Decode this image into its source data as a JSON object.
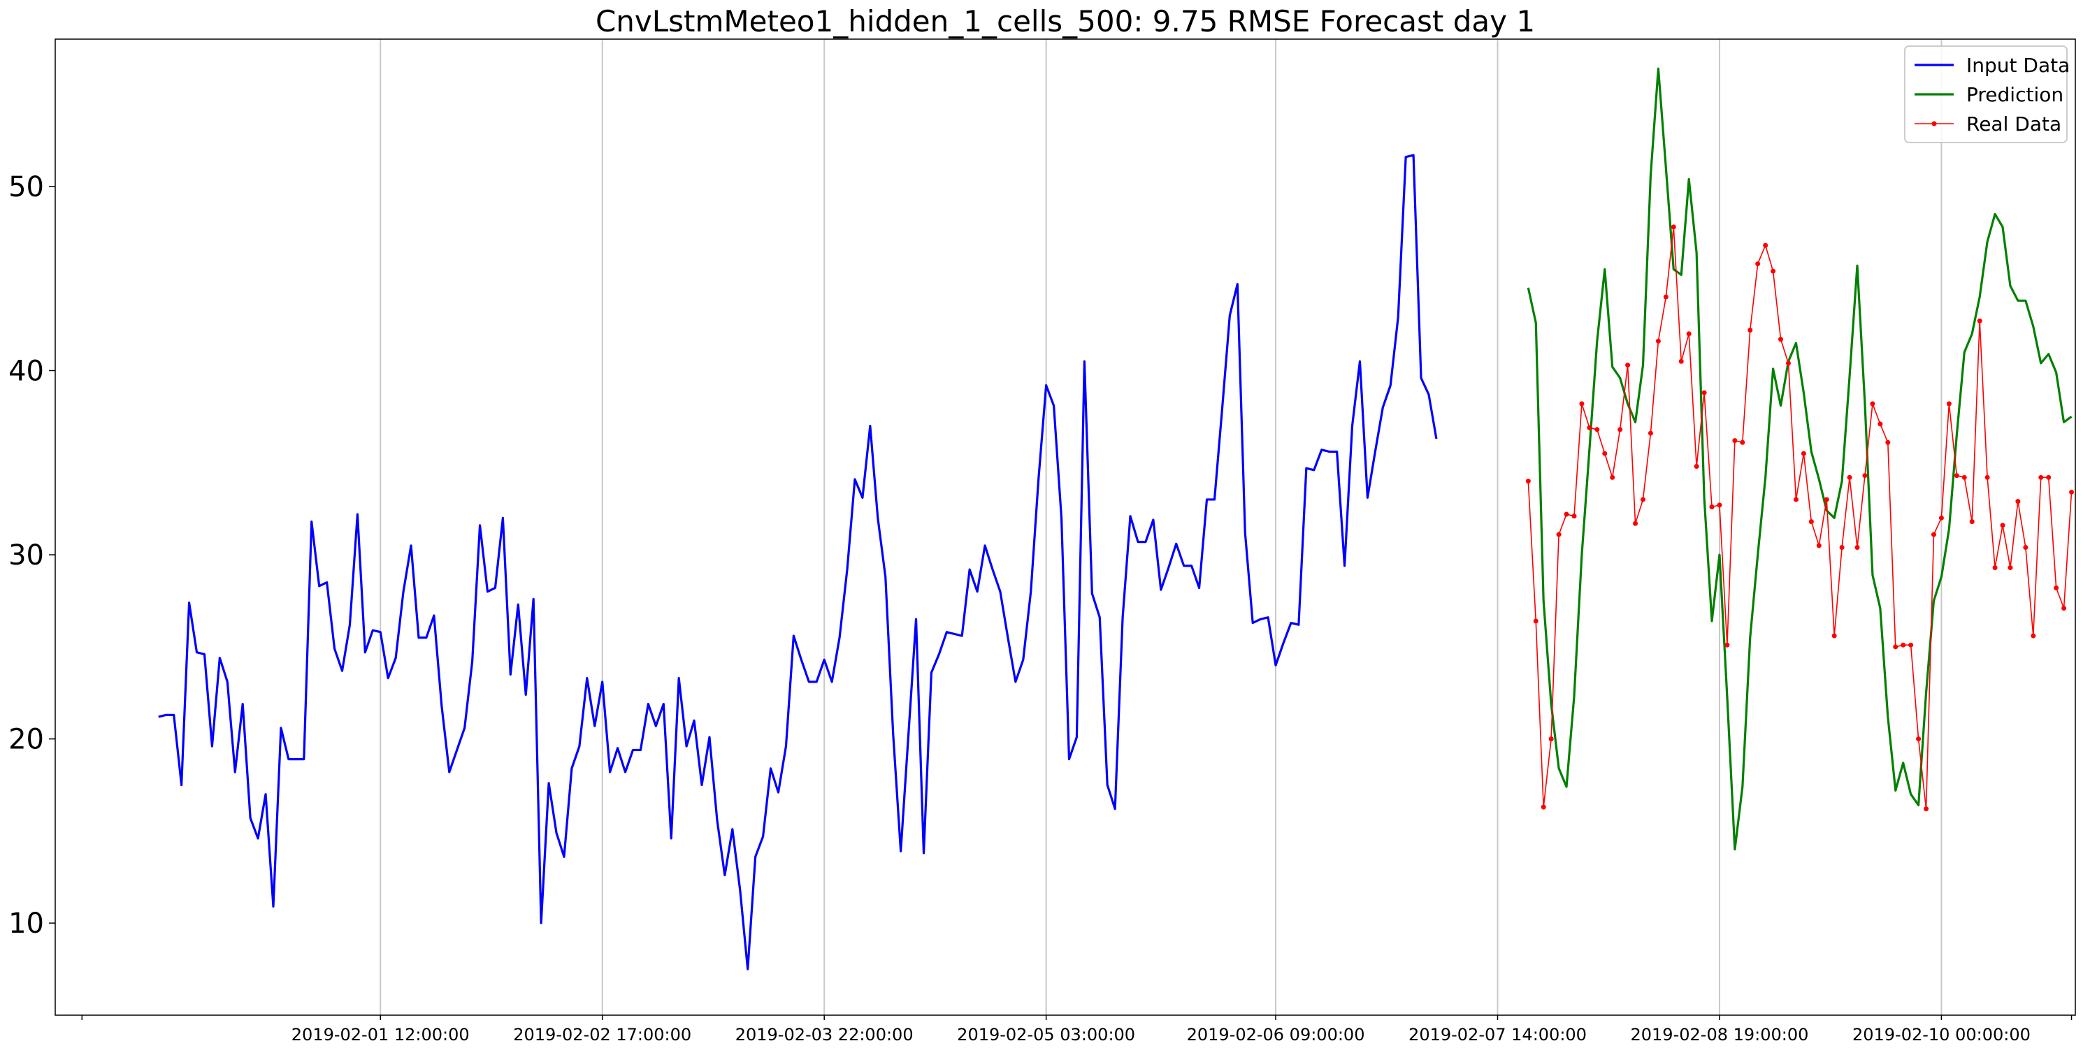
{
  "chart_data": {
    "type": "line",
    "title": "CnvLstmMeteo1_hidden_1_cells_500: 9.75 RMSE Forecast day 1",
    "xlabel": "",
    "ylabel": "",
    "x_unit": "hours since 2019-01-31 19:00",
    "xlim": [
      -13.5,
      250.5
    ],
    "ylim": [
      5,
      58
    ],
    "y_ticks": [
      10,
      20,
      30,
      40,
      50
    ],
    "x_ticks": [
      {
        "hour": 29,
        "label": "2019-02-01 12:00:00"
      },
      {
        "hour": 58,
        "label": "2019-02-02 17:00:00"
      },
      {
        "hour": 87,
        "label": "2019-02-03 22:00:00"
      },
      {
        "hour": 116,
        "label": "2019-02-05 03:00:00"
      },
      {
        "hour": 146,
        "label": "2019-02-06 09:00:00"
      },
      {
        "hour": 175,
        "label": "2019-02-07 14:00:00"
      },
      {
        "hour": 204,
        "label": "2019-02-08 19:00:00"
      },
      {
        "hour": 233,
        "label": "2019-02-10 00:00:00"
      }
    ],
    "grid": "vertical",
    "legend_position": "top-right",
    "series": [
      {
        "name": "Input Data",
        "color": "#0000ff",
        "start": 0,
        "values": [
          21.2,
          21.3,
          21.3,
          17.5,
          27.4,
          24.7,
          24.6,
          19.6,
          24.4,
          23.1,
          18.2,
          21.9,
          15.7,
          14.6,
          17.0,
          10.9,
          20.6,
          18.9,
          18.9,
          18.9,
          31.8,
          28.3,
          28.5,
          24.9,
          23.7,
          26.2,
          32.2,
          24.7,
          25.9,
          25.8,
          23.3,
          24.4,
          28.0,
          30.5,
          25.5,
          25.5,
          26.7,
          21.8,
          18.2,
          19.4,
          20.6,
          24.2,
          31.6,
          28.0,
          28.2,
          32.0,
          23.5,
          27.3,
          22.4,
          27.6,
          10.0,
          17.6,
          14.9,
          13.6,
          18.4,
          19.6,
          23.3,
          20.7,
          23.1,
          18.2,
          19.5,
          18.2,
          19.4,
          19.4,
          21.9,
          20.7,
          21.9,
          14.6,
          23.3,
          19.6,
          21.0,
          17.5,
          20.1,
          15.6,
          12.6,
          15.1,
          11.8,
          7.5,
          13.6,
          14.7,
          18.4,
          17.1,
          19.6,
          25.6,
          24.3,
          23.1,
          23.1,
          24.3,
          23.1,
          25.5,
          29.2,
          34.1,
          33.1,
          37.0,
          32.0,
          28.8,
          20.3,
          13.9,
          20.2,
          26.5,
          13.8,
          23.6,
          24.6,
          25.8,
          25.7,
          25.6,
          29.2,
          28.0,
          30.5,
          29.2,
          28.0,
          25.5,
          23.1,
          24.3,
          28.0,
          34.1,
          39.2,
          38.1,
          32.0,
          18.9,
          20.1,
          40.5,
          27.9,
          26.6,
          17.5,
          16.2,
          26.6,
          32.1,
          30.7,
          30.7,
          31.9,
          28.1,
          29.3,
          30.6,
          29.4,
          29.4,
          28.2,
          33.0,
          33.0,
          37.9,
          43.0,
          44.7,
          31.2,
          26.3,
          26.5,
          26.6,
          24.0,
          25.2,
          26.3,
          26.2,
          34.7,
          34.6,
          35.7,
          35.6,
          35.6,
          29.4,
          37.0,
          40.5,
          33.1,
          35.6,
          38.0,
          39.2,
          42.9,
          51.6,
          51.7,
          39.6,
          38.7,
          36.3
        ]
      },
      {
        "name": "Prediction",
        "color": "#008000",
        "start": 179,
        "values": [
          44.5,
          42.6,
          27.5,
          21.9,
          18.4,
          17.4,
          22.3,
          30.0,
          35.7,
          41.6,
          45.5,
          40.2,
          39.6,
          38.2,
          37.2,
          40.3,
          50.6,
          56.4,
          51.0,
          45.5,
          45.2,
          50.4,
          46.4,
          33.1,
          26.4,
          30.0,
          22.3,
          14.0,
          17.4,
          25.5,
          30.0,
          34.2,
          40.1,
          38.1,
          40.5,
          41.5,
          38.8,
          35.6,
          34.1,
          32.4,
          32.0,
          34.0,
          39.7,
          45.7,
          38.2,
          28.9,
          27.1,
          21.2,
          17.2,
          18.7,
          17.0,
          16.4,
          22.5,
          27.5,
          28.8,
          31.4,
          36.5,
          41.0,
          42.0,
          44.0,
          47.0,
          48.5,
          47.8,
          44.6,
          43.8,
          43.8,
          42.4,
          40.4,
          40.9,
          39.9,
          37.2,
          37.5
        ]
      },
      {
        "name": "Real Data",
        "color": "#ff0000",
        "start": 179,
        "values": [
          34.0,
          26.4,
          16.3,
          20.0,
          31.1,
          32.2,
          32.1,
          38.2,
          36.9,
          36.8,
          35.5,
          34.2,
          36.8,
          40.3,
          31.7,
          33.0,
          36.6,
          41.6,
          44.0,
          47.8,
          40.5,
          42.0,
          34.8,
          38.8,
          32.6,
          32.7,
          25.1,
          36.2,
          36.1,
          42.2,
          45.8,
          46.8,
          45.4,
          41.7,
          40.4,
          33.0,
          35.5,
          31.8,
          30.5,
          33.0,
          25.6,
          30.4,
          34.2,
          30.4,
          34.3,
          38.2,
          37.1,
          36.1,
          25.0,
          25.1,
          25.1,
          20.0,
          16.2,
          31.1,
          32.0,
          38.2,
          34.3,
          34.2,
          31.8,
          42.7,
          34.2,
          29.3,
          31.6,
          29.3,
          32.9,
          30.4,
          25.6,
          34.2,
          34.2,
          28.2,
          27.1,
          33.4
        ]
      }
    ]
  }
}
